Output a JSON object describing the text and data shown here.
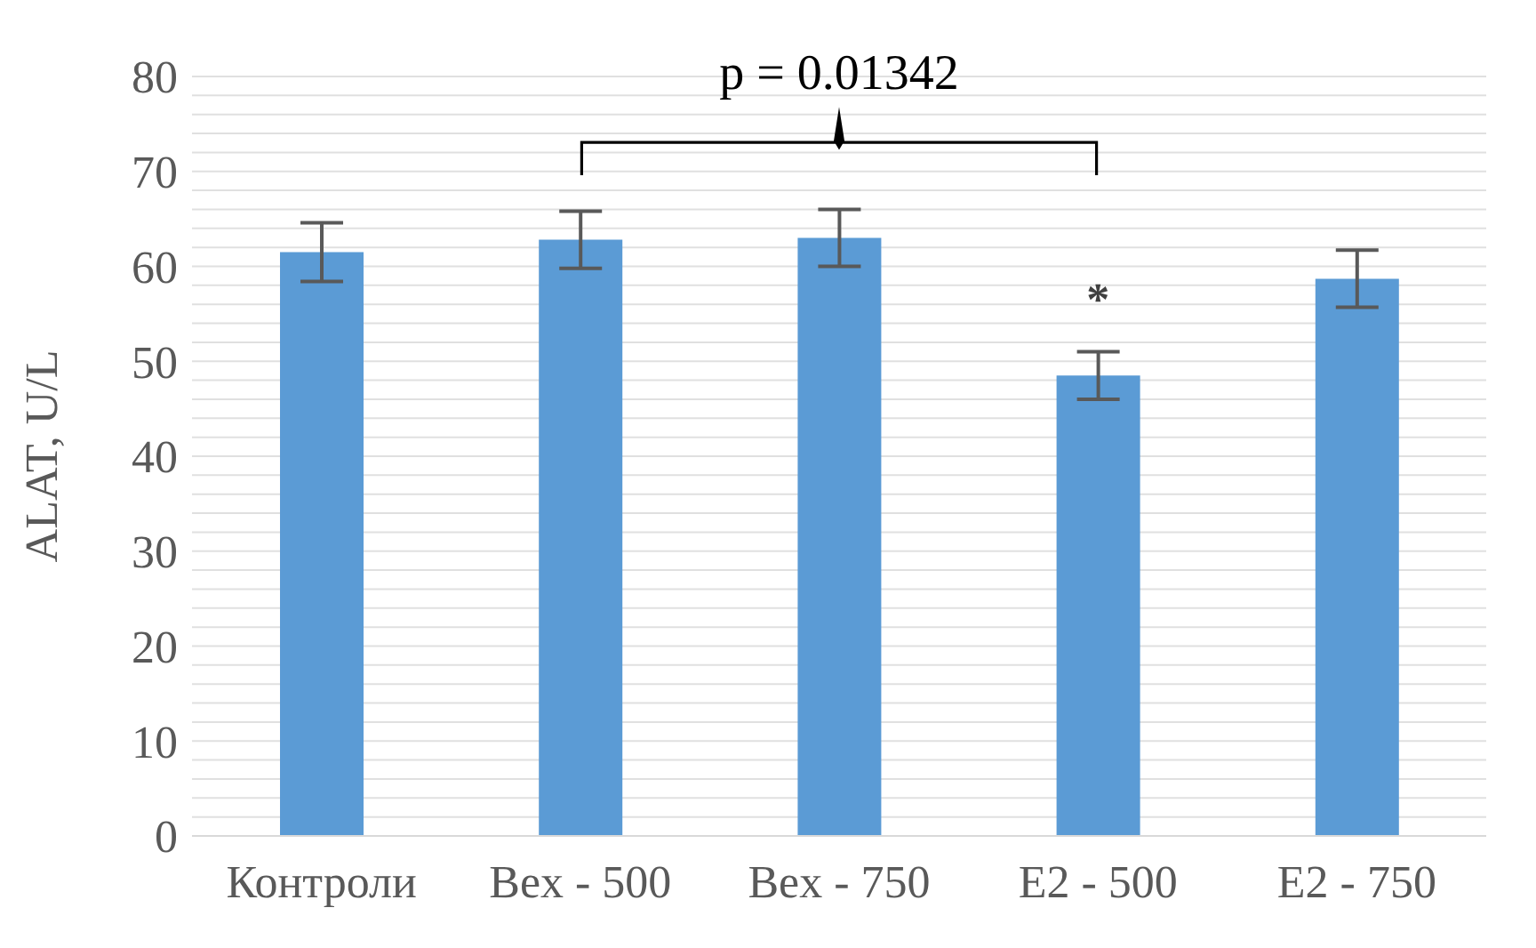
{
  "chart_data": {
    "type": "bar",
    "ylabel": "ALAT, U/L",
    "categories": [
      "Контроли",
      "Bex - 500",
      "Bex - 750",
      "E2 - 500",
      "E2 - 750"
    ],
    "values": [
      61.5,
      62.8,
      63.0,
      48.5,
      58.7
    ],
    "errors": [
      3.1,
      3.0,
      3.0,
      2.5,
      3.0
    ],
    "color": "#5b9bd5",
    "ylim": [
      0,
      80
    ],
    "yticks": [
      0,
      {
        "value": 2,
        "label": null
      },
      {
        "value": 4,
        "label": null
      },
      {
        "value": 6,
        "label": null
      },
      {
        "value": 8,
        "label": null
      },
      10,
      {
        "value": 12,
        "label": null
      },
      {
        "value": 14,
        "label": null
      },
      {
        "value": 16,
        "label": null
      },
      {
        "value": 18,
        "label": null
      },
      20,
      {
        "value": 22,
        "label": null
      },
      {
        "value": 24,
        "label": null
      },
      {
        "value": 26,
        "label": null
      },
      {
        "value": 28,
        "label": null
      },
      30,
      {
        "value": 32,
        "label": null
      },
      {
        "value": 34,
        "label": null
      },
      {
        "value": 36,
        "label": null
      },
      {
        "value": 38,
        "label": null
      },
      40,
      {
        "value": 42,
        "label": null
      },
      {
        "value": 44,
        "label": null
      },
      {
        "value": 46,
        "label": null
      },
      {
        "value": 48,
        "label": null
      },
      50,
      {
        "value": 52,
        "label": null
      },
      {
        "value": 54,
        "label": null
      },
      {
        "value": 56,
        "label": null
      },
      {
        "value": 58,
        "label": null
      },
      60,
      {
        "value": 62,
        "label": null
      },
      {
        "value": 64,
        "label": null
      },
      {
        "value": 66,
        "label": null
      },
      {
        "value": 68,
        "label": null
      },
      70,
      {
        "value": 72,
        "label": null
      },
      {
        "value": 74,
        "label": null
      },
      {
        "value": 76,
        "label": null
      },
      {
        "value": 78,
        "label": null
      },
      80
    ],
    "grid": "y",
    "annotations": [
      "p = 0.01342",
      "*"
    ]
  }
}
